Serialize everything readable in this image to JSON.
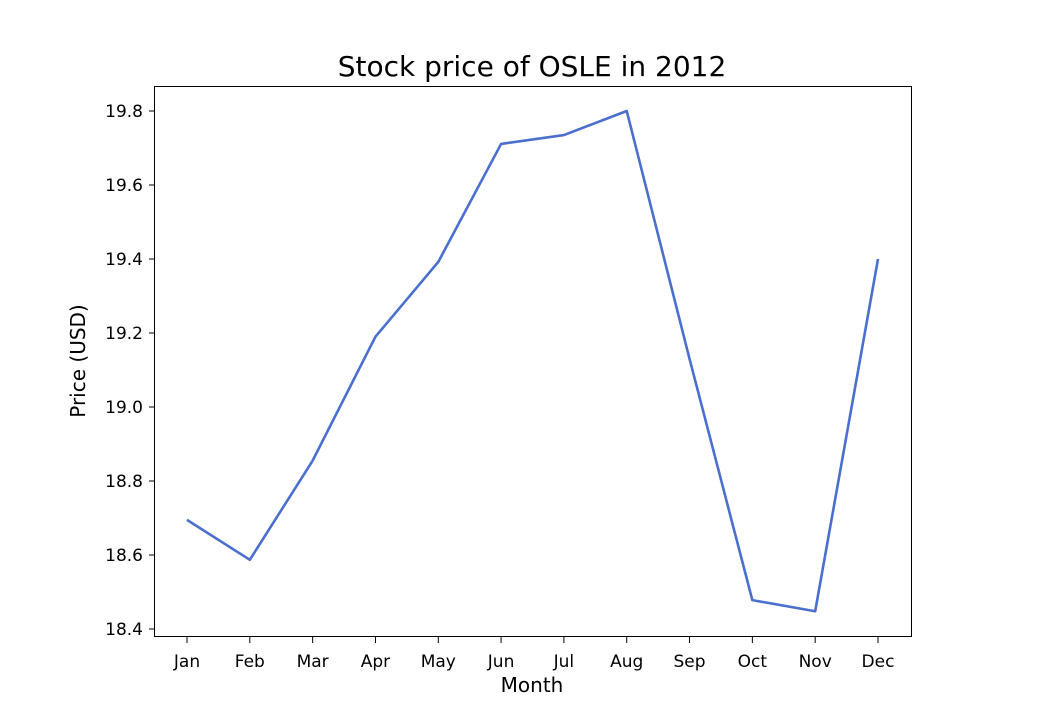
{
  "chart_data": {
    "type": "line",
    "title": "Stock price of OSLE in 2012",
    "xlabel": "Month",
    "ylabel": "Price (USD)",
    "categories": [
      "Jan",
      "Feb",
      "Mar",
      "Apr",
      "May",
      "Jun",
      "Jul",
      "Aug",
      "Sep",
      "Oct",
      "Nov",
      "Dec"
    ],
    "series": [
      {
        "values": [
          18.695,
          18.587,
          18.855,
          19.19,
          19.392,
          19.711,
          19.735,
          19.8,
          19.13,
          18.478,
          18.448,
          19.4
        ],
        "color": "#4a6fcf"
      }
    ],
    "ylim": [
      18.4,
      19.8
    ],
    "yticks": [
      "18.4",
      "18.6",
      "18.8",
      "19.0",
      "19.2",
      "19.4",
      "19.6",
      "19.8"
    ],
    "grid": false,
    "legend": "none"
  }
}
